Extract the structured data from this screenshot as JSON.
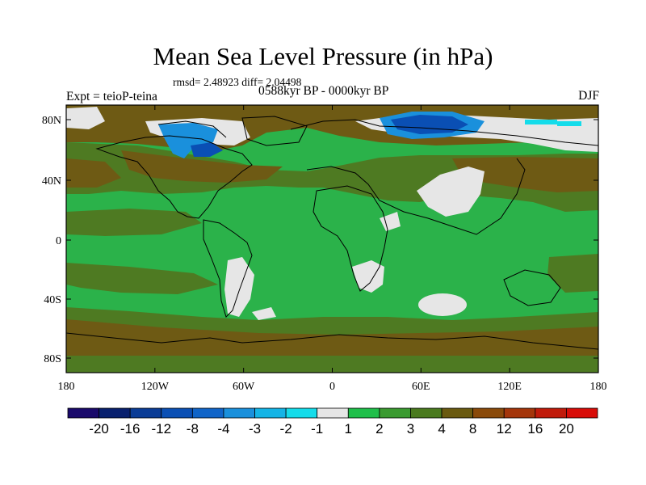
{
  "title": "Mean Sea Level Pressure (in hPa)",
  "stats_line": "rmsd= 2.48923  diff= 2.04498",
  "period_label": "0588kyr BP - 0000kyr BP",
  "experiment_label": "Expt = teioP-teina",
  "season_label": "DJF",
  "map": {
    "type": "filled-contour",
    "variable": "Mean Sea Level Pressure difference",
    "units": "hPa",
    "x_ticks": [
      "180",
      "120W",
      "60W",
      "0",
      "60E",
      "120E",
      "180"
    ],
    "y_ticks": [
      "80N",
      "40N",
      "0",
      "40S",
      "80S"
    ],
    "lon_range": [
      -180,
      180
    ],
    "lat_range": [
      -90,
      90
    ]
  },
  "colorbar": {
    "labels": [
      "-20",
      "-16",
      "-12",
      "-8",
      "-4",
      "-3",
      "-2",
      "-1",
      "1",
      "2",
      "3",
      "4",
      "8",
      "12",
      "16",
      "20"
    ],
    "colors": [
      "#1a0a6b",
      "#08206e",
      "#0a3c96",
      "#0a4fb4",
      "#1064c8",
      "#1a90dc",
      "#14b4e6",
      "#14dcea",
      "#e6e6e6",
      "#1fbf4a",
      "#3a9a30",
      "#4a7a1e",
      "#6a5a10",
      "#8a4a0a",
      "#a4350a",
      "#c01a0a",
      "#d80c08"
    ]
  },
  "colors": {
    "ocean_base": "#2bb24a",
    "positive_olive": "#4e7a22",
    "positive_brown": "#6e5a14",
    "near_zero": "#e6e6e6",
    "negative_blue": "#0a4fb4",
    "negative_cyan": "#14dcea"
  }
}
